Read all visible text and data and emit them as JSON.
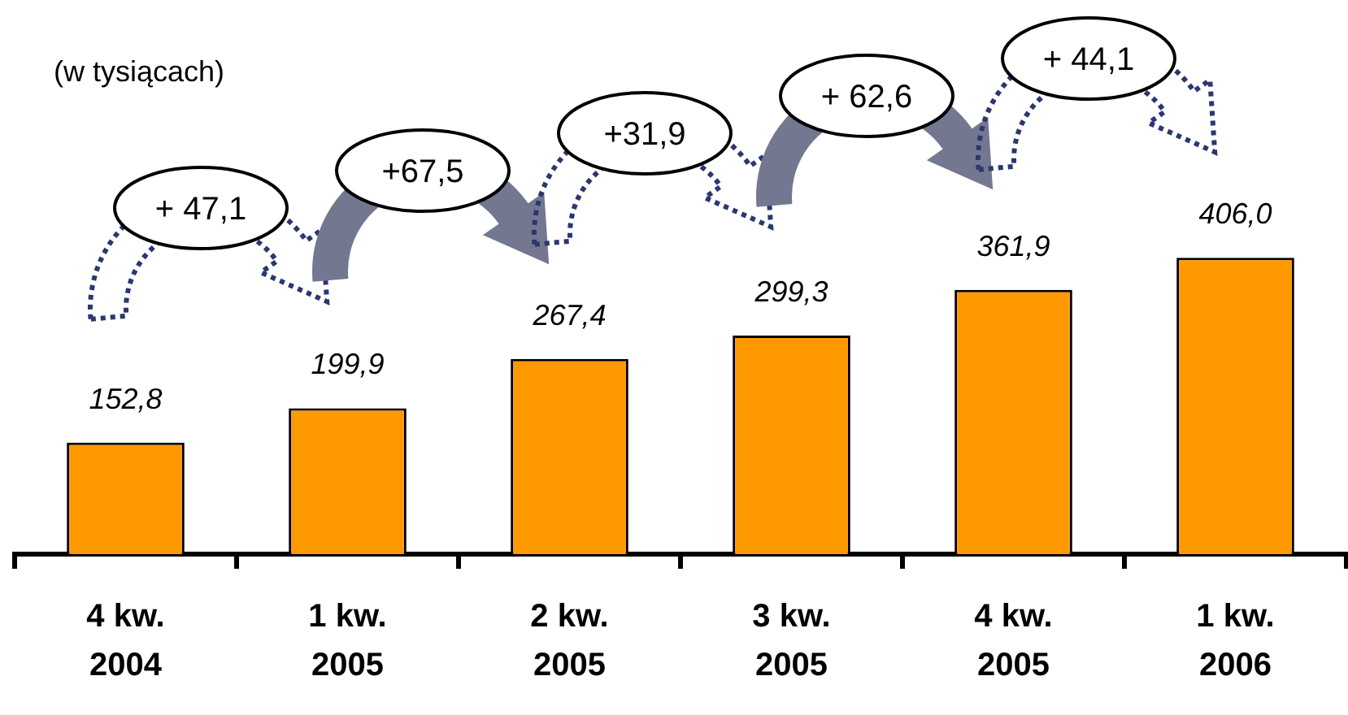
{
  "chart_data": {
    "type": "bar",
    "subtitle": "(w tysiącach)",
    "categories": [
      "4 kw. 2004",
      "1 kw. 2005",
      "2 kw. 2005",
      "3 kw. 2005",
      "4 kw. 2005",
      "1 kw. 2006"
    ],
    "values": [
      152.8,
      199.9,
      267.4,
      299.3,
      361.9,
      406.0
    ],
    "color": "#ff9900",
    "value_labels": [
      "152,8",
      "199,9",
      "267,4",
      "299,3",
      "361,9",
      "406,0"
    ],
    "annotations": [
      "+ 47,1",
      "+67,5",
      "+31,9",
      "+ 62,6",
      "+ 44,1"
    ]
  }
}
